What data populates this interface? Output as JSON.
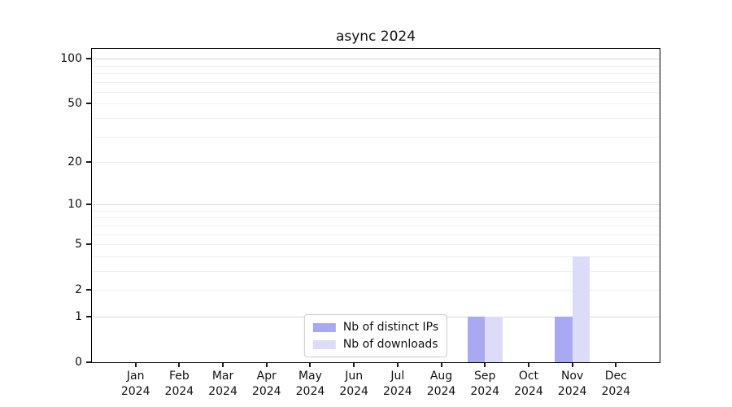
{
  "chart_data": {
    "type": "bar",
    "title": "async 2024",
    "categories": [
      "Jan",
      "Feb",
      "Mar",
      "Apr",
      "May",
      "Jun",
      "Jul",
      "Aug",
      "Sep",
      "Oct",
      "Nov",
      "Dec"
    ],
    "x_tick_year": "2024",
    "series": [
      {
        "name": "Nb of distinct IPs",
        "color": "#a9a9f3",
        "values": [
          0,
          0,
          0,
          0,
          0,
          0,
          0,
          0,
          1,
          0,
          1,
          0
        ]
      },
      {
        "name": "Nb of downloads",
        "color": "#dcdcf8",
        "values": [
          0,
          0,
          0,
          0,
          0,
          0,
          0,
          0,
          1,
          0,
          4,
          0
        ]
      }
    ],
    "yscale": "log1p",
    "ylim": [
      0,
      113
    ],
    "y_ticks": [
      0,
      1,
      2,
      5,
      10,
      20,
      50,
      100
    ],
    "y_major_gridlines": [
      1,
      10,
      100
    ],
    "y_minor_gridlines": [
      2,
      3,
      4,
      5,
      6,
      7,
      8,
      9,
      20,
      30,
      40,
      50,
      60,
      70,
      80,
      90
    ],
    "grid": true,
    "legend_position": "lower center",
    "colors": {
      "major_gridline": "#d9d9d9",
      "minor_gridline": "#efefef",
      "spine": "#000000",
      "text": "#111111",
      "legend_border": "#cccccc",
      "background": "#ffffff"
    }
  }
}
